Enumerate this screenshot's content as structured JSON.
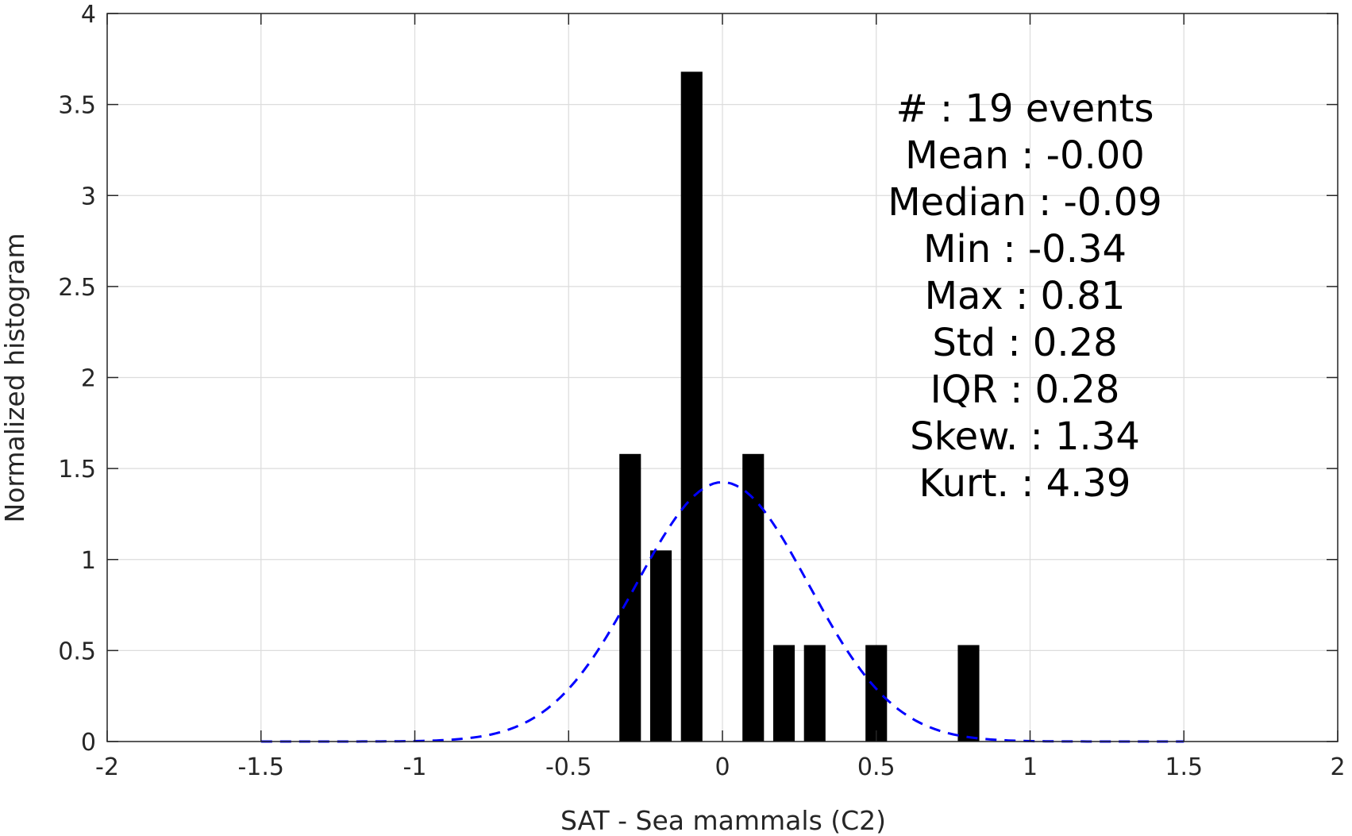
{
  "chart_data": {
    "type": "bar",
    "xlabel": "SAT - Sea mammals (C2)",
    "ylabel": "Normalized histogram",
    "xlim": [
      -2,
      2
    ],
    "ylim": [
      0,
      4
    ],
    "xticks": [
      "-2",
      "-1.5",
      "-1",
      "-0.5",
      "0",
      "0.5",
      "1",
      "1.5",
      "2"
    ],
    "yticks": [
      "0",
      "0.5",
      "1",
      "1.5",
      "2",
      "2.5",
      "3",
      "3.5",
      "4"
    ],
    "grid": true,
    "bars": {
      "color": "#000000",
      "x": [
        -0.3,
        -0.2,
        -0.1,
        0.1,
        0.2,
        0.3,
        0.5,
        0.8
      ],
      "values": [
        1.58,
        1.05,
        3.68,
        1.58,
        0.53,
        0.53,
        0.53,
        0.53
      ]
    },
    "fit": {
      "style": "dashed",
      "color": "#0000ff",
      "mean": 0.0,
      "std": 0.28,
      "x_range": [
        -1.5,
        1.5
      ]
    },
    "stats": [
      {
        "label": "#  ",
        "value": "19 events"
      },
      {
        "label": "Mean ",
        "value": "-0.00"
      },
      {
        "label": "Median ",
        "value": "-0.09"
      },
      {
        "label": "Min ",
        "value": "-0.34"
      },
      {
        "label": "Max ",
        "value": "0.81"
      },
      {
        "label": "Std ",
        "value": "0.28"
      },
      {
        "label": "IQR ",
        "value": "0.28"
      },
      {
        "label": "Skew. ",
        "value": "1.34"
      },
      {
        "label": "Kurt. ",
        "value": "4.39"
      }
    ]
  }
}
